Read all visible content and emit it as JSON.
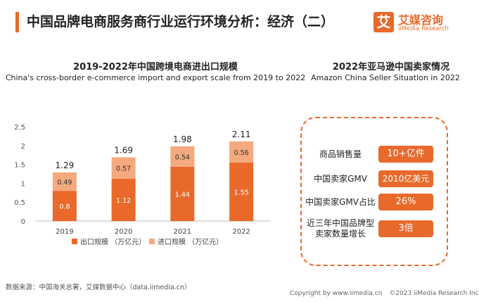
{
  "header": {
    "title": "中国品牌电商服务商行业运行环境分析：经济（二）",
    "logo_mark": "艾",
    "logo_cn": "艾媒咨询",
    "logo_en": "iiMedia Research"
  },
  "chart_data": {
    "type": "bar",
    "stacked": true,
    "title": "2019-2022年中国跨境电商进出口规模",
    "subtitle": "China's cross-border e-commerce import and export scale from 2019 to 2022",
    "categories": [
      "2019",
      "2020",
      "2021",
      "2022"
    ],
    "series": [
      {
        "name": "出口规模 （万亿元）",
        "values": [
          0.8,
          1.12,
          1.44,
          1.55
        ],
        "color": "#e8692a"
      },
      {
        "name": "进口规模 （万亿元）",
        "values": [
          0.49,
          0.57,
          0.54,
          0.56
        ],
        "color": "#f4a97e"
      }
    ],
    "totals": [
      "1.29",
      "1.69",
      "1.98",
      "2.11"
    ],
    "value_labels": {
      "export": [
        "0.8",
        "1.12",
        "1.44",
        "1.55"
      ],
      "import": [
        "0.49",
        "0.57",
        "0.54",
        "0.56"
      ]
    },
    "yticks": [
      "0",
      "0.5",
      "1",
      "1.5",
      "2",
      "2.5"
    ],
    "ylim": [
      0,
      2.5
    ],
    "grid": false,
    "legend_position": "bottom"
  },
  "amazon": {
    "title": "2022年亚马逊中国卖家情况",
    "subtitle": "Amazon China Seller Situation in 2022",
    "rows": [
      {
        "label": "商品销售量",
        "value": "10+亿件"
      },
      {
        "label": "中国卖家GMV",
        "value": "2010亿美元"
      },
      {
        "label": "中国卖家GMV占比",
        "value": "26%"
      },
      {
        "label": "近三年中国品牌型卖家数量增长",
        "value": "3倍"
      }
    ]
  },
  "source": "数据来源：中国海关总署，艾媒数据中心（data.iimedia.cn）",
  "footer": {
    "url": "Copyright by www.iimedia.cn",
    "copyright": "©2023 iiMedia Research Inc"
  },
  "colors": {
    "accent": "#e8692a",
    "accent_light": "#f4a97e"
  }
}
